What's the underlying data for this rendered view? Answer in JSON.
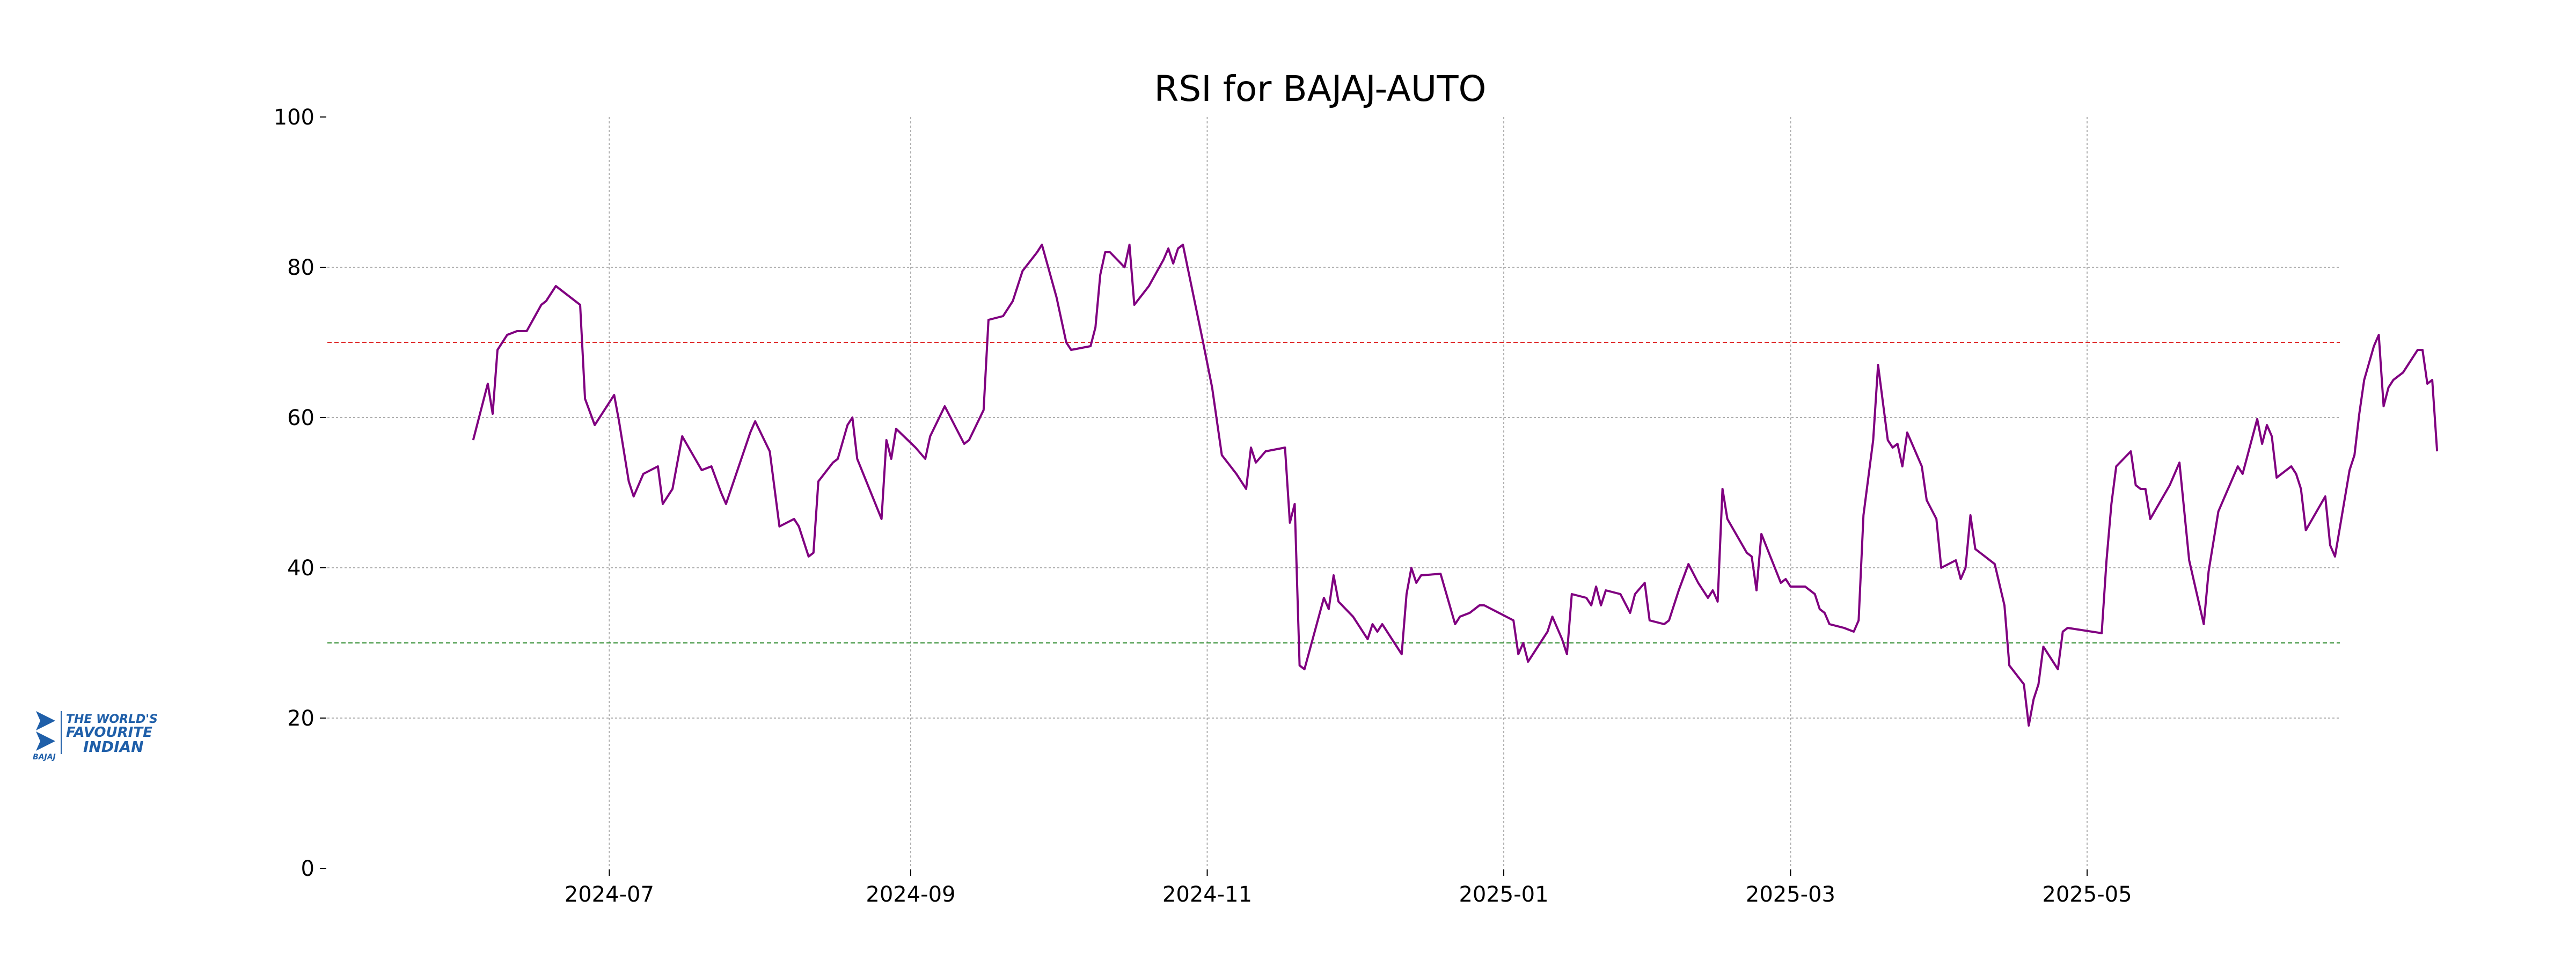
{
  "logo": {
    "brand": "BAJAJ",
    "tagline": "THE WORLD'S FAVOURITE INDIAN",
    "color": "#1f5fa9"
  },
  "chart_data": {
    "type": "line",
    "title": "RSI for BAJAJ-AUTO",
    "xlabel": "",
    "ylabel": "",
    "ylim": [
      0,
      100
    ],
    "xlim": [
      "2024-05-04",
      "2025-06-22"
    ],
    "yticks": [
      0,
      20,
      40,
      60,
      80,
      100
    ],
    "xticks": [
      "2024-07",
      "2024-09",
      "2024-11",
      "2025-01",
      "2025-03",
      "2025-05"
    ],
    "xtick_dates": [
      "2024-07-01",
      "2024-09-01",
      "2024-11-01",
      "2025-01-01",
      "2025-03-01",
      "2025-05-01"
    ],
    "grid": true,
    "reference_lines": [
      {
        "value": 70,
        "color": "#e03030",
        "style": "dashed"
      },
      {
        "value": 30,
        "color": "#2e8b2e",
        "style": "dashed"
      }
    ],
    "series": [
      {
        "color": "#800080",
        "points": [
          [
            "2024-06-03",
            57
          ],
          [
            "2024-06-06",
            64.5
          ],
          [
            "2024-06-07",
            60.5
          ],
          [
            "2024-06-08",
            69
          ],
          [
            "2024-06-10",
            71
          ],
          [
            "2024-06-12",
            71.5
          ],
          [
            "2024-06-14",
            71.5
          ],
          [
            "2024-06-17",
            75
          ],
          [
            "2024-06-18",
            75.5
          ],
          [
            "2024-06-20",
            77.5
          ],
          [
            "2024-06-25",
            75
          ],
          [
            "2024-06-26",
            62.5
          ],
          [
            "2024-06-28",
            59
          ],
          [
            "2024-07-02",
            63
          ],
          [
            "2024-07-03",
            59.5
          ],
          [
            "2024-07-05",
            51.5
          ],
          [
            "2024-07-06",
            49.5
          ],
          [
            "2024-07-08",
            52.5
          ],
          [
            "2024-07-11",
            53.5
          ],
          [
            "2024-07-12",
            48.5
          ],
          [
            "2024-07-14",
            50.5
          ],
          [
            "2024-07-16",
            57.5
          ],
          [
            "2024-07-20",
            53
          ],
          [
            "2024-07-22",
            53.5
          ],
          [
            "2024-07-24",
            50
          ],
          [
            "2024-07-25",
            48.5
          ],
          [
            "2024-07-30",
            58
          ],
          [
            "2024-07-31",
            59.5
          ],
          [
            "2024-08-03",
            55.5
          ],
          [
            "2024-08-05",
            45.5
          ],
          [
            "2024-08-08",
            46.5
          ],
          [
            "2024-08-09",
            45.5
          ],
          [
            "2024-08-11",
            41.5
          ],
          [
            "2024-08-12",
            42
          ],
          [
            "2024-08-13",
            51.5
          ],
          [
            "2024-08-16",
            54
          ],
          [
            "2024-08-17",
            54.5
          ],
          [
            "2024-08-19",
            59
          ],
          [
            "2024-08-20",
            60
          ],
          [
            "2024-08-21",
            54.5
          ],
          [
            "2024-08-26",
            46.5
          ],
          [
            "2024-08-27",
            57
          ],
          [
            "2024-08-28",
            54.5
          ],
          [
            "2024-08-29",
            58.5
          ],
          [
            "2024-09-02",
            56
          ],
          [
            "2024-09-04",
            54.5
          ],
          [
            "2024-09-05",
            57.5
          ],
          [
            "2024-09-08",
            61.5
          ],
          [
            "2024-09-10",
            59
          ],
          [
            "2024-09-12",
            56.5
          ],
          [
            "2024-09-13",
            57
          ],
          [
            "2024-09-16",
            61
          ],
          [
            "2024-09-17",
            73
          ],
          [
            "2024-09-20",
            73.5
          ],
          [
            "2024-09-22",
            75.5
          ],
          [
            "2024-09-24",
            79.5
          ],
          [
            "2024-09-27",
            82
          ],
          [
            "2024-09-28",
            83
          ],
          [
            "2024-10-01",
            76
          ],
          [
            "2024-10-03",
            70
          ],
          [
            "2024-10-04",
            69
          ],
          [
            "2024-10-08",
            69.5
          ],
          [
            "2024-10-09",
            72
          ],
          [
            "2024-10-10",
            79
          ],
          [
            "2024-10-11",
            82
          ],
          [
            "2024-10-12",
            82
          ],
          [
            "2024-10-15",
            80
          ],
          [
            "2024-10-16",
            83
          ],
          [
            "2024-10-17",
            75
          ],
          [
            "2024-10-20",
            77.5
          ],
          [
            "2024-10-23",
            81
          ],
          [
            "2024-10-24",
            82.5
          ],
          [
            "2024-10-25",
            80.5
          ],
          [
            "2024-10-26",
            82.5
          ],
          [
            "2024-10-27",
            83
          ],
          [
            "2024-10-31",
            70.5
          ],
          [
            "2024-11-02",
            64
          ],
          [
            "2024-11-04",
            55
          ],
          [
            "2024-11-07",
            52.5
          ],
          [
            "2024-11-09",
            50.5
          ],
          [
            "2024-11-10",
            56
          ],
          [
            "2024-11-11",
            54
          ],
          [
            "2024-11-13",
            55.5
          ],
          [
            "2024-11-17",
            56
          ],
          [
            "2024-11-18",
            46
          ],
          [
            "2024-11-19",
            48.5
          ],
          [
            "2024-11-20",
            27
          ],
          [
            "2024-11-21",
            26.5
          ],
          [
            "2024-11-25",
            36
          ],
          [
            "2024-11-26",
            34.5
          ],
          [
            "2024-11-27",
            39
          ],
          [
            "2024-11-28",
            35.5
          ],
          [
            "2024-12-01",
            33.5
          ],
          [
            "2024-12-02",
            32.5
          ],
          [
            "2024-12-04",
            30.5
          ],
          [
            "2024-12-05",
            32.5
          ],
          [
            "2024-12-06",
            31.5
          ],
          [
            "2024-12-07",
            32.5
          ],
          [
            "2024-12-10",
            29.5
          ],
          [
            "2024-12-11",
            28.5
          ],
          [
            "2024-12-12",
            36.5
          ],
          [
            "2024-12-13",
            40
          ],
          [
            "2024-12-14",
            38
          ],
          [
            "2024-12-15",
            39
          ],
          [
            "2024-12-19",
            39.2
          ],
          [
            "2024-12-22",
            32.5
          ],
          [
            "2024-12-23",
            33.5
          ],
          [
            "2024-12-25",
            34
          ],
          [
            "2024-12-27",
            35
          ],
          [
            "2024-12-28",
            35
          ],
          [
            "2025-01-03",
            33
          ],
          [
            "2025-01-04",
            28.5
          ],
          [
            "2025-01-05",
            30
          ],
          [
            "2025-01-06",
            27.5
          ],
          [
            "2025-01-10",
            31.5
          ],
          [
            "2025-01-11",
            33.5
          ],
          [
            "2025-01-13",
            30.5
          ],
          [
            "2025-01-14",
            28.5
          ],
          [
            "2025-01-15",
            36.5
          ],
          [
            "2025-01-18",
            36
          ],
          [
            "2025-01-19",
            35
          ],
          [
            "2025-01-20",
            37.5
          ],
          [
            "2025-01-21",
            35
          ],
          [
            "2025-01-22",
            37
          ],
          [
            "2025-01-25",
            36.5
          ],
          [
            "2025-01-27",
            34
          ],
          [
            "2025-01-28",
            36.5
          ],
          [
            "2025-01-30",
            38
          ],
          [
            "2025-01-31",
            33
          ],
          [
            "2025-02-03",
            32.5
          ],
          [
            "2025-02-04",
            33
          ],
          [
            "2025-02-06",
            37
          ],
          [
            "2025-02-08",
            40.5
          ],
          [
            "2025-02-10",
            38
          ],
          [
            "2025-02-12",
            36
          ],
          [
            "2025-02-13",
            37
          ],
          [
            "2025-02-14",
            35.5
          ],
          [
            "2025-02-15",
            50.5
          ],
          [
            "2025-02-16",
            46.5
          ],
          [
            "2025-02-20",
            42
          ],
          [
            "2025-02-21",
            41.5
          ],
          [
            "2025-02-22",
            37
          ],
          [
            "2025-02-23",
            44.5
          ],
          [
            "2025-02-27",
            38
          ],
          [
            "2025-02-28",
            38.5
          ],
          [
            "2025-03-01",
            37.5
          ],
          [
            "2025-03-04",
            37.5
          ],
          [
            "2025-03-06",
            36.5
          ],
          [
            "2025-03-07",
            34.5
          ],
          [
            "2025-03-08",
            34
          ],
          [
            "2025-03-09",
            32.5
          ],
          [
            "2025-03-12",
            32
          ],
          [
            "2025-03-14",
            31.5
          ],
          [
            "2025-03-15",
            33
          ],
          [
            "2025-03-16",
            47
          ],
          [
            "2025-03-18",
            57
          ],
          [
            "2025-03-19",
            67
          ],
          [
            "2025-03-21",
            57
          ],
          [
            "2025-03-22",
            56
          ],
          [
            "2025-03-23",
            56.5
          ],
          [
            "2025-03-24",
            53.5
          ],
          [
            "2025-03-25",
            58
          ],
          [
            "2025-03-28",
            53.5
          ],
          [
            "2025-03-29",
            49
          ],
          [
            "2025-03-31",
            46.5
          ],
          [
            "2025-04-01",
            40
          ],
          [
            "2025-04-04",
            41
          ],
          [
            "2025-04-05",
            38.5
          ],
          [
            "2025-04-06",
            40
          ],
          [
            "2025-04-07",
            47
          ],
          [
            "2025-04-08",
            42.5
          ],
          [
            "2025-04-12",
            40.5
          ],
          [
            "2025-04-14",
            35
          ],
          [
            "2025-04-15",
            27
          ],
          [
            "2025-04-18",
            24.5
          ],
          [
            "2025-04-19",
            19
          ],
          [
            "2025-04-20",
            22.5
          ],
          [
            "2025-04-21",
            24.5
          ],
          [
            "2025-04-22",
            29.5
          ],
          [
            "2025-04-25",
            26.5
          ],
          [
            "2025-04-26",
            31.5
          ],
          [
            "2025-04-27",
            32
          ],
          [
            "2025-05-04",
            31.3
          ],
          [
            "2025-05-05",
            41
          ],
          [
            "2025-05-06",
            48.5
          ],
          [
            "2025-05-07",
            53.5
          ],
          [
            "2025-05-10",
            55.5
          ],
          [
            "2025-05-11",
            51
          ],
          [
            "2025-05-12",
            50.5
          ],
          [
            "2025-05-13",
            50.5
          ],
          [
            "2025-05-14",
            46.5
          ],
          [
            "2025-05-18",
            51
          ],
          [
            "2025-05-20",
            54
          ],
          [
            "2025-05-22",
            41
          ],
          [
            "2025-05-25",
            32.5
          ],
          [
            "2025-05-26",
            39.5
          ],
          [
            "2025-05-28",
            47.5
          ],
          [
            "2025-06-01",
            53.5
          ],
          [
            "2025-06-02",
            52.5
          ],
          [
            "2025-06-05",
            59.8
          ],
          [
            "2025-06-06",
            56.5
          ],
          [
            "2025-06-07",
            59
          ],
          [
            "2025-06-08",
            57.5
          ],
          [
            "2025-06-09",
            52
          ],
          [
            "2025-06-12",
            53.5
          ],
          [
            "2025-06-13",
            52.5
          ],
          [
            "2025-06-14",
            50.5
          ],
          [
            "2025-06-15",
            45
          ],
          [
            "2025-06-19",
            49.5
          ],
          [
            "2025-06-20",
            43
          ],
          [
            "2025-06-21",
            41.5
          ],
          [
            "2025-06-24",
            53
          ],
          [
            "2025-06-25",
            55
          ],
          [
            "2025-06-26",
            60.5
          ],
          [
            "2025-06-27",
            65
          ],
          [
            "2025-06-29",
            69.5
          ],
          [
            "2025-06-30",
            71
          ],
          [
            "2025-07-01",
            61.5
          ],
          [
            "2025-07-02",
            64
          ],
          [
            "2025-07-03",
            65
          ],
          [
            "2025-07-05",
            66
          ],
          [
            "2025-07-08",
            69
          ],
          [
            "2025-07-09",
            69
          ],
          [
            "2025-07-10",
            64.5
          ],
          [
            "2025-07-11",
            65
          ],
          [
            "2025-07-12",
            55.5
          ]
        ]
      }
    ]
  }
}
